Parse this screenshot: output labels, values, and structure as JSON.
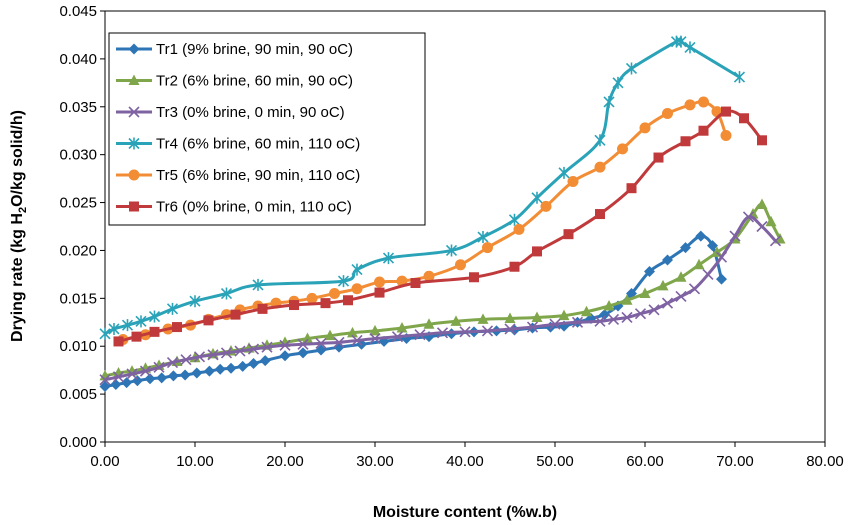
{
  "chart_data": {
    "type": "line",
    "xlabel": "Moisture content (%w.b)",
    "ylabel_parts": [
      "Drying rate (kg H",
      "2",
      "O/kg solid/h)"
    ],
    "xlim": [
      0,
      80
    ],
    "ylim": [
      0,
      0.045
    ],
    "x_ticks": [
      "0.00",
      "10.00",
      "20.00",
      "30.00",
      "40.00",
      "50.00",
      "60.00",
      "70.00",
      "80.00"
    ],
    "y_ticks": [
      "0.000",
      "0.005",
      "0.010",
      "0.015",
      "0.020",
      "0.025",
      "0.030",
      "0.035",
      "0.040",
      "0.045"
    ],
    "grid": false,
    "legend_position": "top-left",
    "series": [
      {
        "name": "Tr1 (9% brine, 90 min, 90 oC)",
        "color": "#2e75b6",
        "marker": "diamond",
        "x": [
          0.0,
          1.2,
          2.4,
          3.6,
          5.0,
          6.3,
          7.6,
          8.9,
          10.2,
          11.6,
          12.8,
          14.0,
          15.3,
          16.5,
          17.8,
          20.0,
          22.0,
          24.0,
          26.0,
          28.5,
          31.0,
          33.5,
          36.0,
          38.5,
          41.0,
          43.5,
          45.5,
          47.5,
          49.5,
          51.0,
          52.5,
          54.0,
          55.5,
          57.0,
          58.5,
          60.5,
          62.5,
          64.5,
          66.2,
          67.5,
          68.5
        ],
        "y": [
          0.0058,
          0.006,
          0.0062,
          0.0064,
          0.0066,
          0.0067,
          0.0069,
          0.007,
          0.0072,
          0.0074,
          0.0076,
          0.0077,
          0.0079,
          0.0082,
          0.0085,
          0.009,
          0.0093,
          0.0096,
          0.0099,
          0.0102,
          0.0105,
          0.0108,
          0.011,
          0.0113,
          0.0115,
          0.0116,
          0.0117,
          0.0119,
          0.012,
          0.0121,
          0.0125,
          0.0129,
          0.0133,
          0.0142,
          0.0155,
          0.0178,
          0.019,
          0.0203,
          0.0215,
          0.0205,
          0.017
        ]
      },
      {
        "name": "Tr2 (6% brine, 60 min, 90 oC)",
        "color": "#7fa64b",
        "marker": "triangle",
        "x": [
          0.0,
          1.5,
          3.0,
          4.5,
          6.0,
          8.0,
          10.0,
          12.0,
          14.0,
          16.0,
          18.0,
          20.0,
          22.5,
          25.0,
          27.5,
          30.0,
          33.0,
          36.0,
          39.0,
          42.0,
          45.0,
          48.0,
          51.0,
          53.5,
          56.0,
          58.0,
          60.0,
          62.0,
          64.0,
          66.0,
          68.0,
          70.0,
          72.0,
          73.0,
          74.0,
          75.0
        ],
        "y": [
          0.0069,
          0.0072,
          0.0074,
          0.0077,
          0.008,
          0.0084,
          0.0088,
          0.0092,
          0.0095,
          0.0098,
          0.0101,
          0.0104,
          0.0108,
          0.0111,
          0.0114,
          0.0116,
          0.0119,
          0.0123,
          0.0126,
          0.0128,
          0.0129,
          0.013,
          0.0132,
          0.0136,
          0.0142,
          0.0148,
          0.0155,
          0.0163,
          0.0172,
          0.0185,
          0.0198,
          0.0212,
          0.0238,
          0.0248,
          0.023,
          0.0212
        ]
      },
      {
        "name": "Tr3 (0% brine, 0 min, 90 oC)",
        "color": "#7e62a2",
        "marker": "x",
        "x": [
          0.0,
          1.5,
          3.0,
          4.5,
          6.0,
          7.5,
          9.0,
          10.5,
          12.0,
          13.5,
          15.0,
          16.5,
          18.0,
          20.0,
          22.0,
          24.0,
          26.0,
          28.0,
          30.0,
          32.5,
          35.0,
          37.5,
          40.0,
          42.5,
          45.0,
          47.5,
          50.0,
          52.5,
          55.0,
          56.5,
          58.0,
          59.5,
          61.0,
          62.5,
          64.0,
          65.5,
          67.0,
          68.5,
          70.0,
          71.5,
          73.0,
          74.5
        ],
        "y": [
          0.0065,
          0.0068,
          0.0071,
          0.0074,
          0.0078,
          0.0083,
          0.0086,
          0.0089,
          0.0091,
          0.0093,
          0.0095,
          0.0097,
          0.0099,
          0.0101,
          0.0102,
          0.0103,
          0.0104,
          0.0106,
          0.0108,
          0.011,
          0.0112,
          0.0114,
          0.0115,
          0.0116,
          0.0118,
          0.012,
          0.0123,
          0.0125,
          0.0126,
          0.0128,
          0.013,
          0.0134,
          0.0138,
          0.0145,
          0.0152,
          0.016,
          0.0175,
          0.0193,
          0.0215,
          0.0235,
          0.0225,
          0.021
        ]
      },
      {
        "name": "Tr4 (6% brine, 60 min, 110 oC)",
        "color": "#2aa3b8",
        "marker": "star",
        "x": [
          0.0,
          1.0,
          2.5,
          4.0,
          5.5,
          7.5,
          10.0,
          13.5,
          17.0,
          26.5,
          28.0,
          31.5,
          38.5,
          42.0,
          45.5,
          48.0,
          51.0,
          55.0,
          56.0,
          57.0,
          58.5,
          63.5,
          64.0,
          65.0,
          70.5
        ],
        "y": [
          0.0113,
          0.0118,
          0.0122,
          0.0126,
          0.0131,
          0.0139,
          0.0147,
          0.0155,
          0.0164,
          0.0168,
          0.018,
          0.0192,
          0.02,
          0.0214,
          0.0232,
          0.0255,
          0.0281,
          0.0315,
          0.0355,
          0.0375,
          0.039,
          0.0418,
          0.0418,
          0.0412,
          0.0381
        ]
      },
      {
        "name": "Tr5 (6% brine, 90 min, 110 oC)",
        "color": "#f28d35",
        "marker": "circle",
        "x": [
          2.0,
          4.5,
          7.0,
          9.5,
          11.5,
          13.5,
          15.0,
          17.0,
          19.0,
          21.0,
          23.0,
          25.5,
          28.0,
          30.5,
          33.0,
          36.0,
          39.5,
          42.5,
          46.0,
          49.0,
          52.0,
          55.0,
          57.5,
          60.0,
          62.5,
          65.0,
          66.5,
          68.0,
          69.0
        ],
        "y": [
          0.0107,
          0.0112,
          0.0118,
          0.0122,
          0.0128,
          0.0133,
          0.0138,
          0.0142,
          0.0145,
          0.0147,
          0.015,
          0.0155,
          0.016,
          0.0167,
          0.0168,
          0.0173,
          0.0185,
          0.0203,
          0.0222,
          0.0246,
          0.0272,
          0.0287,
          0.0306,
          0.0328,
          0.0343,
          0.0352,
          0.0355,
          0.0345,
          0.032
        ]
      },
      {
        "name": "Tr6 (0% brine, 0 min, 110 oC)",
        "color": "#c0393b",
        "marker": "square",
        "x": [
          1.5,
          3.5,
          5.5,
          8.0,
          11.5,
          14.5,
          17.5,
          21.0,
          24.5,
          27.0,
          30.5,
          34.5,
          41.0,
          45.5,
          48.0,
          51.5,
          55.0,
          58.5,
          61.5,
          64.5,
          66.5,
          69.0,
          71.0,
          73.0
        ],
        "y": [
          0.0105,
          0.011,
          0.0115,
          0.012,
          0.0127,
          0.0133,
          0.0139,
          0.0143,
          0.0145,
          0.0148,
          0.0156,
          0.0166,
          0.0172,
          0.0183,
          0.0199,
          0.0217,
          0.0238,
          0.0265,
          0.0297,
          0.0314,
          0.0325,
          0.0345,
          0.0338,
          0.0315
        ]
      }
    ]
  }
}
